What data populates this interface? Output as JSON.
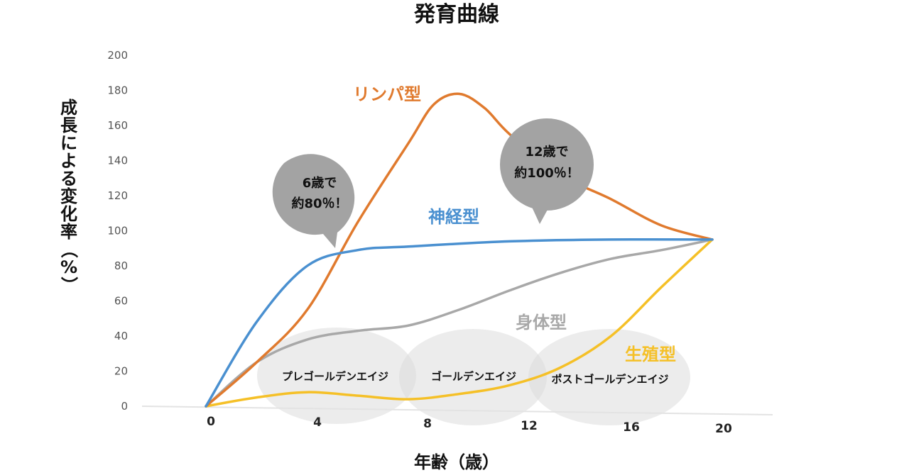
{
  "chart_data": {
    "type": "line",
    "title": "発育曲線",
    "xlabel": "年齢（歳）",
    "ylabel": "成長による変化率（%）",
    "ylim": [
      0,
      200
    ],
    "xlim": [
      0,
      20
    ],
    "x_ticks": [
      "0",
      "4",
      "8",
      "12",
      "16",
      "20"
    ],
    "y_ticks": [
      "0",
      "20",
      "40",
      "60",
      "80",
      "100",
      "120",
      "140",
      "160",
      "180",
      "200"
    ],
    "grid": false,
    "series": [
      {
        "name": "リンパ型",
        "color": "#E07A2E",
        "x": [
          0,
          2,
          4,
          6,
          8,
          9,
          10,
          11,
          12,
          14,
          16,
          18,
          20
        ],
        "y": [
          0,
          25,
          55,
          105,
          150,
          172,
          178,
          170,
          155,
          132,
          118,
          103,
          95
        ]
      },
      {
        "name": "神経型",
        "color": "#4A90D0",
        "x": [
          0,
          2,
          4,
          6,
          8,
          12,
          16,
          20
        ],
        "y": [
          0,
          48,
          80,
          89,
          91,
          94,
          95,
          95
        ]
      },
      {
        "name": "身体型",
        "color": "#A8A8A8",
        "x": [
          0,
          2,
          4,
          6,
          8,
          10,
          12,
          14,
          16,
          18,
          20
        ],
        "y": [
          0,
          25,
          38,
          43,
          46,
          55,
          66,
          76,
          84,
          89,
          95
        ]
      },
      {
        "name": "生殖型",
        "color": "#F5C027",
        "x": [
          0,
          2,
          4,
          6,
          8,
          10,
          12,
          14,
          16,
          18,
          20
        ],
        "y": [
          0,
          5,
          8,
          6,
          4,
          7,
          12,
          22,
          40,
          68,
          95
        ]
      }
    ],
    "stages": [
      "プレゴールデンエイジ",
      "ゴールデンエイジ",
      "ポストゴールデンエイジ"
    ],
    "annotations": [
      {
        "lines": [
          "6歳で",
          "約80％！"
        ]
      },
      {
        "lines": [
          "12歳で",
          "約100％！"
        ]
      }
    ]
  }
}
